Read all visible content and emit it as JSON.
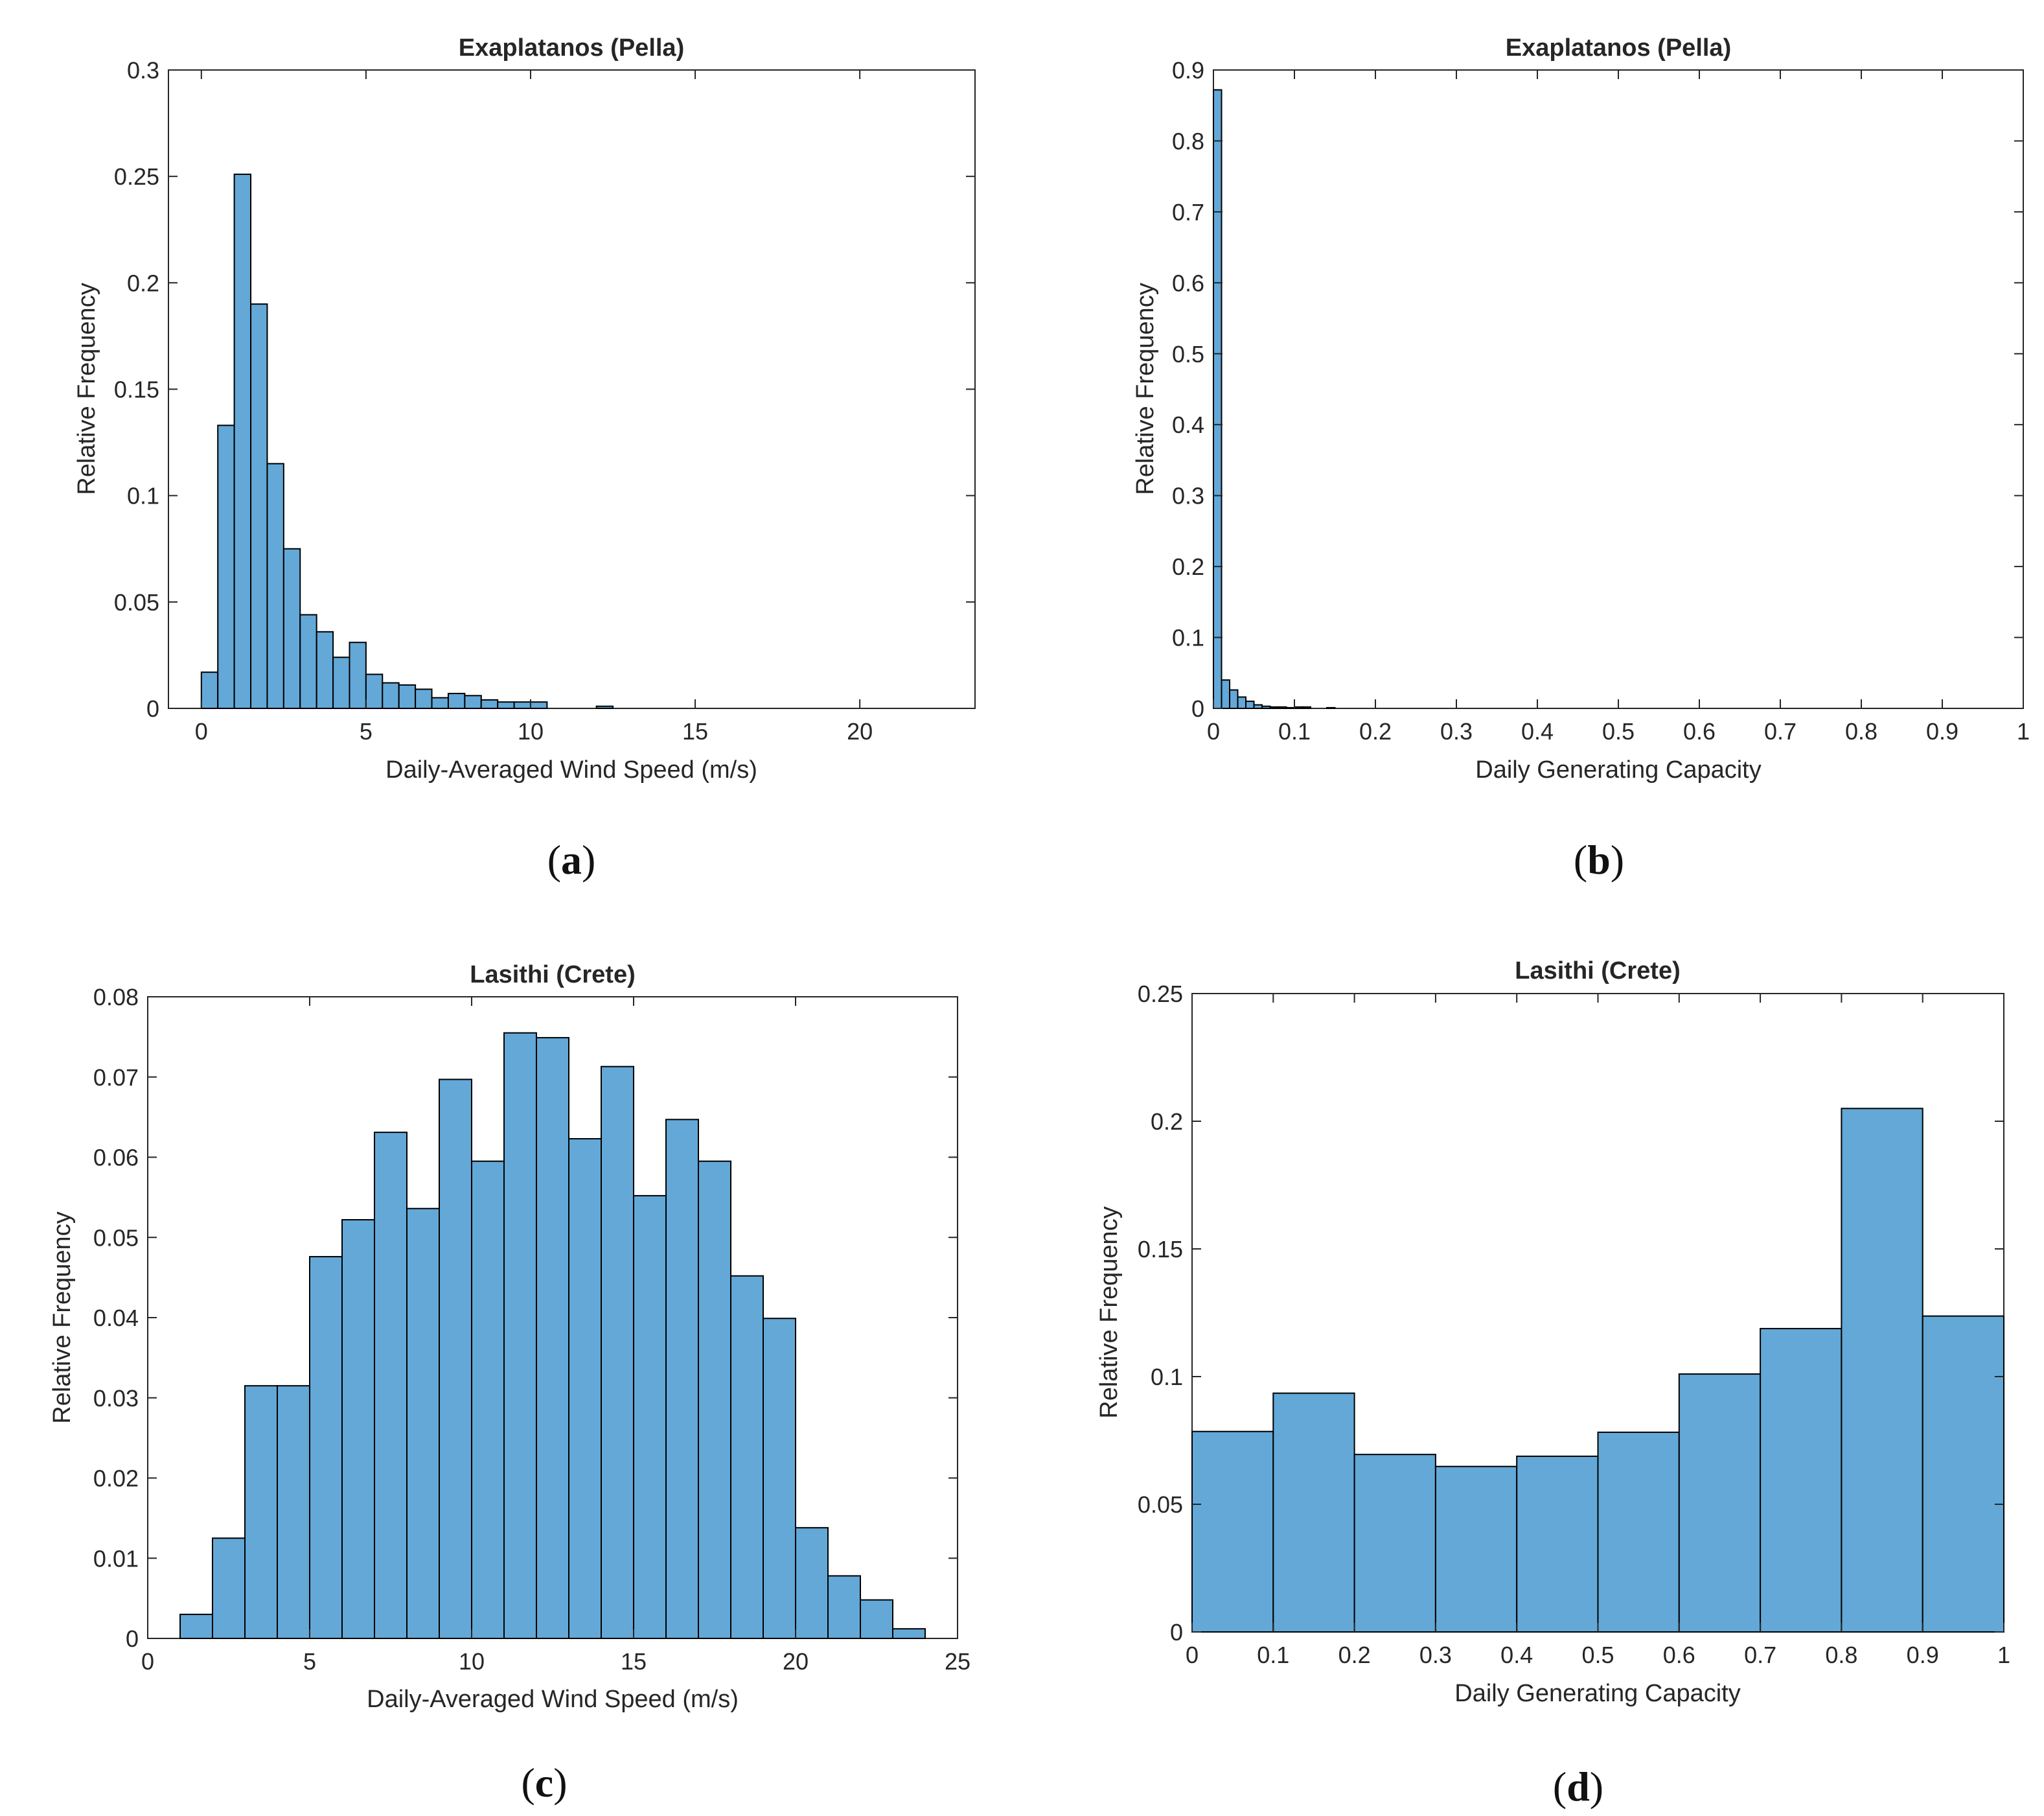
{
  "colors": {
    "bar_fill": "#63A8D7",
    "bar_edge": "#000000",
    "axis": "#262626",
    "background": "#ffffff"
  },
  "panels": [
    {
      "caption": "a"
    },
    {
      "caption": "b"
    },
    {
      "caption": "c"
    },
    {
      "caption": "d"
    }
  ],
  "chart_data": [
    {
      "type": "bar",
      "title": "Exaplatanos (Pella)",
      "xlabel": "Daily-Averaged Wind Speed (m/s)",
      "ylabel": "Relative Frequency",
      "xlim": [
        -1,
        23.5
      ],
      "ylim": [
        0,
        0.3
      ],
      "xticks": [
        0,
        5,
        10,
        15,
        20
      ],
      "xtick_labels": [
        "0",
        "5",
        "10",
        "15",
        "20"
      ],
      "yticks": [
        0,
        0.05,
        0.1,
        0.15,
        0.2,
        0.25,
        0.3
      ],
      "ytick_labels": [
        "0",
        "0.05",
        "0.1",
        "0.15",
        "0.2",
        "0.25",
        "0.3"
      ],
      "bin_edges": [
        0,
        0.5,
        1,
        1.5,
        2,
        2.5,
        3,
        3.5,
        4,
        4.5,
        5,
        5.5,
        6,
        6.5,
        7,
        7.5,
        8,
        8.5,
        9,
        9.5,
        10,
        10.5,
        11,
        11.5,
        12,
        12.5
      ],
      "values": [
        0.017,
        0.133,
        0.251,
        0.19,
        0.115,
        0.075,
        0.044,
        0.036,
        0.024,
        0.031,
        0.016,
        0.012,
        0.011,
        0.009,
        0.005,
        0.007,
        0.006,
        0.004,
        0.003,
        0.003,
        0.003,
        0,
        0,
        0,
        0.001
      ]
    },
    {
      "type": "bar",
      "title": "Exaplatanos (Pella)",
      "xlabel": "Daily Generating Capacity",
      "ylabel": "Relative Frequency",
      "xlim": [
        0,
        1
      ],
      "ylim": [
        0,
        0.9
      ],
      "xticks": [
        0,
        0.1,
        0.2,
        0.3,
        0.4,
        0.5,
        0.6,
        0.7,
        0.8,
        0.9,
        1
      ],
      "xtick_labels": [
        "0",
        "0.1",
        "0.2",
        "0.3",
        "0.4",
        "0.5",
        "0.6",
        "0.7",
        "0.8",
        "0.9",
        "1"
      ],
      "yticks": [
        0,
        0.1,
        0.2,
        0.3,
        0.4,
        0.5,
        0.6,
        0.7,
        0.8,
        0.9
      ],
      "ytick_labels": [
        "0",
        "0.1",
        "0.2",
        "0.3",
        "0.4",
        "0.5",
        "0.6",
        "0.7",
        "0.8",
        "0.9"
      ],
      "bin_edges": [
        0,
        0.01,
        0.02,
        0.03,
        0.04,
        0.05,
        0.06,
        0.07,
        0.08,
        0.09,
        0.1,
        0.11,
        0.12,
        0.13,
        0.14,
        0.15
      ],
      "values": [
        0.872,
        0.04,
        0.026,
        0.016,
        0.01,
        0.005,
        0.003,
        0.002,
        0.002,
        0.001,
        0.002,
        0.002,
        0,
        0,
        0.001
      ]
    },
    {
      "type": "bar",
      "title": "Lasithi (Crete)",
      "xlabel": "Daily-Averaged Wind Speed (m/s)",
      "ylabel": "Relative Frequency",
      "xlim": [
        0,
        25
      ],
      "ylim": [
        0,
        0.08
      ],
      "xticks": [
        0,
        5,
        10,
        15,
        20,
        25
      ],
      "xtick_labels": [
        "0",
        "5",
        "10",
        "15",
        "20",
        "25"
      ],
      "yticks": [
        0,
        0.01,
        0.02,
        0.03,
        0.04,
        0.05,
        0.06,
        0.07,
        0.08
      ],
      "ytick_labels": [
        "0",
        "0.01",
        "0.02",
        "0.03",
        "0.04",
        "0.05",
        "0.06",
        "0.07",
        "0.08"
      ],
      "bin_edges": [
        1,
        2,
        3,
        4,
        5,
        6,
        7,
        8,
        9,
        10,
        11,
        12,
        13,
        14,
        15,
        16,
        17,
        18,
        19,
        20,
        21,
        22,
        23,
        24
      ],
      "values": [
        0.003,
        0.0125,
        0.0315,
        0.0315,
        0.0476,
        0.0522,
        0.0631,
        0.0536,
        0.0697,
        0.0595,
        0.0755,
        0.0749,
        0.0623,
        0.0713,
        0.0552,
        0.0647,
        0.0595,
        0.0452,
        0.0399,
        0.0138,
        0.0078,
        0.0048,
        0.0012
      ]
    },
    {
      "type": "bar",
      "title": "Lasithi (Crete)",
      "xlabel": "Daily Generating Capacity",
      "ylabel": "Relative Frequency",
      "xlim": [
        0,
        1
      ],
      "ylim": [
        0,
        0.25
      ],
      "xticks": [
        0,
        0.1,
        0.2,
        0.3,
        0.4,
        0.5,
        0.6,
        0.7,
        0.8,
        0.9,
        1
      ],
      "xtick_labels": [
        "0",
        "0.1",
        "0.2",
        "0.3",
        "0.4",
        "0.5",
        "0.6",
        "0.7",
        "0.8",
        "0.9",
        "1"
      ],
      "yticks": [
        0,
        0.05,
        0.1,
        0.15,
        0.2,
        0.25
      ],
      "ytick_labels": [
        "0",
        "0.05",
        "0.1",
        "0.15",
        "0.2",
        "0.25"
      ],
      "bin_edges": [
        0,
        0.1,
        0.2,
        0.3,
        0.4,
        0.5,
        0.6,
        0.7,
        0.8,
        0.9,
        1
      ],
      "values": [
        0.0785,
        0.0935,
        0.0695,
        0.0648,
        0.0688,
        0.0782,
        0.101,
        0.1188,
        0.205,
        0.1237
      ]
    }
  ]
}
